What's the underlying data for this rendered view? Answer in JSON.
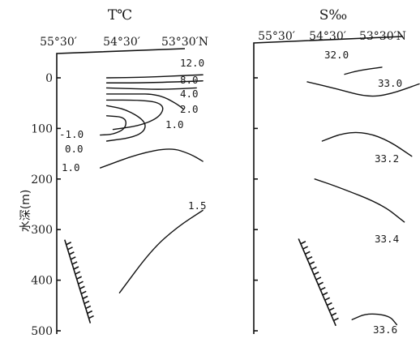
{
  "chart_data": [
    {
      "type": "contour",
      "title": "T℃",
      "xticks": [
        "55°30′",
        "54°30′",
        "53°30′N"
      ],
      "ylabel": "水深(m)",
      "yticks": [
        0,
        100,
        200,
        300,
        400,
        500
      ],
      "ylim": [
        0,
        510
      ],
      "y_inverted": true,
      "contours": [
        {
          "label": "12.0",
          "points": [
            [
              55.1,
              0
            ],
            [
              54.5,
              -1
            ],
            [
              54.0,
              -4
            ],
            [
              53.6,
              -6
            ]
          ]
        },
        {
          "label": "8.0",
          "points": [
            [
              55.1,
              10
            ],
            [
              54.6,
              10
            ],
            [
              54.0,
              8
            ],
            [
              53.6,
              6
            ]
          ]
        },
        {
          "label": "4.0",
          "points": [
            [
              55.1,
              20
            ],
            [
              54.6,
              22
            ],
            [
              54.2,
              23
            ],
            [
              53.7,
              20
            ]
          ]
        },
        {
          "label": "2.0",
          "points": [
            [
              55.1,
              32
            ],
            [
              54.6,
              32
            ],
            [
              54.4,
              32
            ],
            [
              54.2,
              38
            ],
            [
              54.0,
              52
            ],
            [
              53.9,
              62
            ]
          ]
        },
        {
          "label": "1.0",
          "points": [
            [
              55.1,
              44
            ],
            [
              54.6,
              44
            ],
            [
              54.3,
              48
            ],
            [
              54.2,
              60
            ],
            [
              54.3,
              80
            ],
            [
              54.6,
              95
            ],
            [
              55.0,
              102
            ]
          ]
        },
        {
          "label": "-1.0",
          "points": [
            [
              55.1,
              75
            ],
            [
              54.8,
              78
            ],
            [
              54.8,
              100
            ],
            [
              55.0,
              112
            ],
            [
              55.2,
              113
            ]
          ]
        },
        {
          "label": "0.0",
          "points": [
            [
              55.1,
              125
            ],
            [
              54.7,
              118
            ],
            [
              54.5,
              105
            ],
            [
              54.5,
              85
            ],
            [
              54.8,
              62
            ],
            [
              55.1,
              55
            ]
          ]
        },
        {
          "label": "1.0",
          "points": [
            [
              55.2,
              178
            ],
            [
              54.6,
              150
            ],
            [
              54.1,
              138
            ],
            [
              53.8,
              150
            ],
            [
              53.6,
              165
            ]
          ]
        },
        {
          "label": "1.5",
          "points": [
            [
              54.9,
              425
            ],
            [
              54.4,
              340
            ],
            [
              54.0,
              295
            ],
            [
              53.6,
              262
            ]
          ]
        }
      ],
      "seabed": [
        [
          55.3,
          320
        ],
        [
          54.9,
          485
        ]
      ]
    },
    {
      "type": "contour",
      "title": "S‰",
      "xticks": [
        "55°30′",
        "54°30′",
        "53°30′N"
      ],
      "yticks": [
        0,
        100,
        200,
        300,
        400,
        500
      ],
      "ylim": [
        0,
        510
      ],
      "y_inverted": true,
      "contours": [
        {
          "label": "32.0",
          "points": [
            [
              54.5,
              -7
            ],
            [
              54.3,
              -15
            ],
            [
              54.0,
              -21
            ]
          ]
        },
        {
          "label": "33.0",
          "points": [
            [
              55.0,
              8
            ],
            [
              54.6,
              22
            ],
            [
              54.2,
              38
            ],
            [
              53.9,
              33
            ],
            [
              53.5,
              12
            ]
          ]
        },
        {
          "label": "33.2",
          "points": [
            [
              54.8,
              125
            ],
            [
              54.5,
              108
            ],
            [
              54.2,
              108
            ],
            [
              53.9,
              125
            ],
            [
              53.6,
              155
            ]
          ]
        },
        {
          "label": "33.4",
          "points": [
            [
              54.9,
              200
            ],
            [
              54.6,
              215
            ],
            [
              54.0,
              250
            ],
            [
              53.7,
              285
            ]
          ]
        },
        {
          "label": "33.6",
          "points": [
            [
              54.4,
              478
            ],
            [
              54.2,
              465
            ],
            [
              53.9,
              470
            ],
            [
              53.8,
              488
            ]
          ]
        }
      ],
      "seabed": [
        [
          54.9,
          318
        ],
        [
          54.4,
          490
        ]
      ]
    }
  ]
}
